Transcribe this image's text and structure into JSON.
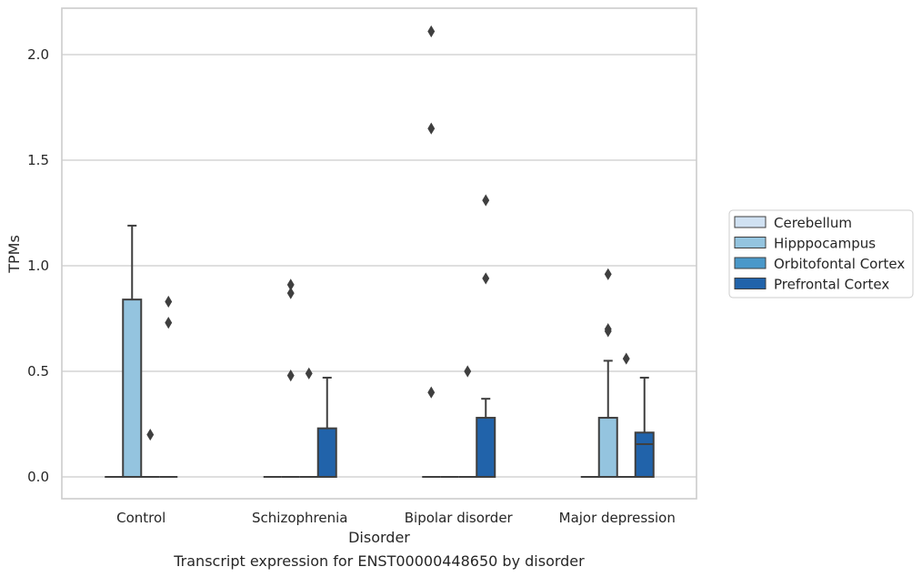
{
  "chart_data": {
    "type": "box",
    "title": "",
    "caption": "Transcript expression for ENST00000448650 by disorder",
    "xlabel": "Disorder",
    "ylabel": "TPMs",
    "ylim": [
      -0.1,
      2.22
    ],
    "yticks": [
      0.0,
      0.5,
      1.0,
      1.5,
      2.0
    ],
    "ytick_labels": [
      "0.0",
      "0.5",
      "1.0",
      "1.5",
      "2.0"
    ],
    "grid": "horizontal",
    "categories": [
      "Control",
      "Schizophrenia",
      "Bipolar disorder",
      "Major depression"
    ],
    "legend_position": "right",
    "series": [
      {
        "name": "Cerebellum",
        "color": "#d0e1f2",
        "boxes": [
          {
            "category": "Control",
            "q1": 0.0,
            "median": 0.0,
            "q3": 0.0,
            "whisker_low": 0.0,
            "whisker_high": 0.0,
            "outliers": []
          },
          {
            "category": "Schizophrenia",
            "q1": 0.0,
            "median": 0.0,
            "q3": 0.0,
            "whisker_low": 0.0,
            "whisker_high": 0.0,
            "outliers": []
          },
          {
            "category": "Bipolar disorder",
            "q1": 0.0,
            "median": 0.0,
            "q3": 0.0,
            "whisker_low": 0.0,
            "whisker_high": 0.0,
            "outliers": [
              2.11,
              1.65,
              0.4
            ]
          },
          {
            "category": "Major depression",
            "q1": 0.0,
            "median": 0.0,
            "q3": 0.0,
            "whisker_low": 0.0,
            "whisker_high": 0.0,
            "outliers": []
          }
        ]
      },
      {
        "name": "Hipppocampus",
        "color": "#94c4df",
        "boxes": [
          {
            "category": "Control",
            "q1": 0.0,
            "median": 0.0,
            "q3": 0.84,
            "whisker_low": 0.0,
            "whisker_high": 1.19,
            "outliers": []
          },
          {
            "category": "Schizophrenia",
            "q1": 0.0,
            "median": 0.0,
            "q3": 0.0,
            "whisker_low": 0.0,
            "whisker_high": 0.0,
            "outliers": [
              0.91,
              0.87,
              0.48
            ]
          },
          {
            "category": "Bipolar disorder",
            "q1": 0.0,
            "median": 0.0,
            "q3": 0.0,
            "whisker_low": 0.0,
            "whisker_high": 0.0,
            "outliers": []
          },
          {
            "category": "Major depression",
            "q1": 0.0,
            "median": 0.0,
            "q3": 0.28,
            "whisker_low": 0.0,
            "whisker_high": 0.55,
            "outliers": [
              0.96,
              0.7,
              0.69
            ]
          }
        ]
      },
      {
        "name": "Orbitofontal Cortex",
        "color": "#4a98c9",
        "boxes": [
          {
            "category": "Control",
            "q1": 0.0,
            "median": 0.0,
            "q3": 0.0,
            "whisker_low": 0.0,
            "whisker_high": 0.0,
            "outliers": [
              0.2
            ]
          },
          {
            "category": "Schizophrenia",
            "q1": 0.0,
            "median": 0.0,
            "q3": 0.0,
            "whisker_low": 0.0,
            "whisker_high": 0.0,
            "outliers": [
              0.49
            ]
          },
          {
            "category": "Bipolar disorder",
            "q1": 0.0,
            "median": 0.0,
            "q3": 0.0,
            "whisker_low": 0.0,
            "whisker_high": 0.0,
            "outliers": [
              0.5
            ]
          },
          {
            "category": "Major depression",
            "q1": 0.0,
            "median": 0.0,
            "q3": 0.0,
            "whisker_low": 0.0,
            "whisker_high": 0.0,
            "outliers": [
              0.56
            ]
          }
        ]
      },
      {
        "name": "Prefrontal Cortex",
        "color": "#2163aa",
        "boxes": [
          {
            "category": "Control",
            "q1": 0.0,
            "median": 0.0,
            "q3": 0.0,
            "whisker_low": 0.0,
            "whisker_high": 0.0,
            "outliers": [
              0.83,
              0.73
            ]
          },
          {
            "category": "Schizophrenia",
            "q1": 0.0,
            "median": 0.0,
            "q3": 0.23,
            "whisker_low": 0.0,
            "whisker_high": 0.47,
            "outliers": []
          },
          {
            "category": "Bipolar disorder",
            "q1": 0.0,
            "median": 0.0,
            "q3": 0.28,
            "whisker_low": 0.0,
            "whisker_high": 0.37,
            "outliers": [
              1.31,
              0.94
            ]
          },
          {
            "category": "Major depression",
            "q1": 0.0,
            "median": 0.155,
            "q3": 0.21,
            "whisker_low": 0.0,
            "whisker_high": 0.47,
            "outliers": []
          }
        ]
      }
    ]
  },
  "style": {
    "edge_color": "#3f3f3f",
    "grid_color": "#cccccc",
    "spine_color": "#cccccc",
    "text_color": "#262626"
  }
}
